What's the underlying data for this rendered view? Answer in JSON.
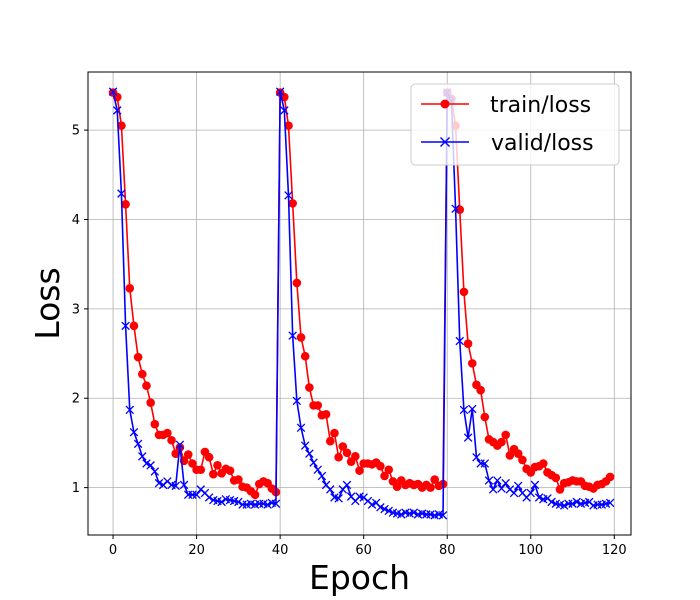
{
  "chart_data": {
    "type": "line",
    "title": "",
    "xlabel": "Epoch",
    "ylabel": "Loss",
    "xlim": [
      -6,
      124
    ],
    "ylim": [
      0.47,
      5.65
    ],
    "xticks": [
      0,
      20,
      40,
      60,
      80,
      100,
      120
    ],
    "yticks": [
      1,
      2,
      3,
      4,
      5
    ],
    "grid": true,
    "legend_position": "top-right",
    "series": [
      {
        "name": "train/loss",
        "color": "#ff0000",
        "marker": "circle",
        "values": [
          5.42,
          5.37,
          5.05,
          4.17,
          3.23,
          2.81,
          2.46,
          2.27,
          2.14,
          1.95,
          1.71,
          1.59,
          1.59,
          1.61,
          1.53,
          1.38,
          1.45,
          1.3,
          1.37,
          1.27,
          1.2,
          1.2,
          1.4,
          1.34,
          1.15,
          1.25,
          1.16,
          1.21,
          1.19,
          1.08,
          1.09,
          1.01,
          1.0,
          0.96,
          0.92,
          1.04,
          1.07,
          1.05,
          0.99,
          0.95,
          5.42,
          5.37,
          5.05,
          4.18,
          3.29,
          2.68,
          2.47,
          2.12,
          1.92,
          1.92,
          1.81,
          1.82,
          1.52,
          1.61,
          1.34,
          1.46,
          1.39,
          1.29,
          1.35,
          1.19,
          1.27,
          1.27,
          1.26,
          1.28,
          1.24,
          1.13,
          1.2,
          1.07,
          1.01,
          1.08,
          1.03,
          1.05,
          1.03,
          1.04,
          1.0,
          1.03,
          1.0,
          1.09,
          1.02,
          1.04,
          5.42,
          5.35,
          5.05,
          4.11,
          3.19,
          2.61,
          2.39,
          2.15,
          2.09,
          1.79,
          1.54,
          1.51,
          1.47,
          1.51,
          1.59,
          1.36,
          1.43,
          1.38,
          1.31,
          1.21,
          1.17,
          1.23,
          1.24,
          1.27,
          1.17,
          1.14,
          1.11,
          0.98,
          1.05,
          1.06,
          1.08,
          1.07,
          1.07,
          1.02,
          1.01,
          0.99,
          1.03,
          1.04,
          1.07,
          1.12
        ]
      },
      {
        "name": "valid/loss",
        "color": "#0000ff",
        "marker": "x",
        "values": [
          5.43,
          5.22,
          4.29,
          2.81,
          1.87,
          1.62,
          1.49,
          1.35,
          1.27,
          1.25,
          1.18,
          1.05,
          1.03,
          1.07,
          1.03,
          1.02,
          1.48,
          1.03,
          0.92,
          0.92,
          0.92,
          0.98,
          0.94,
          0.89,
          0.86,
          0.85,
          0.84,
          0.87,
          0.86,
          0.85,
          0.84,
          0.81,
          0.81,
          0.82,
          0.81,
          0.82,
          0.82,
          0.81,
          0.83,
          0.82,
          5.43,
          5.22,
          4.27,
          2.7,
          1.97,
          1.67,
          1.47,
          1.38,
          1.28,
          1.2,
          1.13,
          1.03,
          0.98,
          0.89,
          0.88,
          0.98,
          1.03,
          0.9,
          0.85,
          0.9,
          0.89,
          0.85,
          0.81,
          0.83,
          0.78,
          0.76,
          0.74,
          0.72,
          0.71,
          0.7,
          0.72,
          0.71,
          0.72,
          0.7,
          0.71,
          0.7,
          0.7,
          0.69,
          0.7,
          0.69,
          5.42,
          5.33,
          4.12,
          2.64,
          1.87,
          1.56,
          1.88,
          1.34,
          1.27,
          1.27,
          1.08,
          0.98,
          1.08,
          0.99,
          1.05,
          0.98,
          0.94,
          1.02,
          0.94,
          0.89,
          0.94,
          1.03,
          0.89,
          0.87,
          0.88,
          0.84,
          0.82,
          0.81,
          0.8,
          0.82,
          0.82,
          0.84,
          0.82,
          0.83,
          0.84,
          0.8,
          0.81,
          0.81,
          0.82,
          0.83
        ]
      }
    ]
  }
}
